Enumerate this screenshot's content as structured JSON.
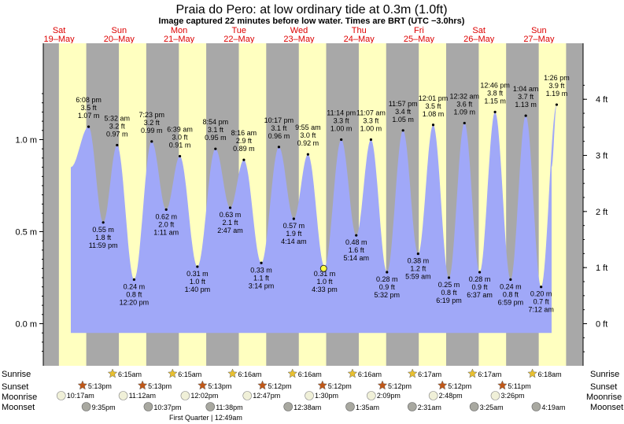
{
  "header": {
    "title": "Praia do Pero: at low  ordinary tide at 0.3m (1.0ft)",
    "subtitle": "Image captured 22 minutes before low water. Times are BRT (UTC −3.0hrs)"
  },
  "days": [
    {
      "dow": "Sat",
      "date": "19–May"
    },
    {
      "dow": "Sun",
      "date": "20–May"
    },
    {
      "dow": "Mon",
      "date": "21–May"
    },
    {
      "dow": "Tue",
      "date": "22–May"
    },
    {
      "dow": "Wed",
      "date": "23–May"
    },
    {
      "dow": "Thu",
      "date": "24–May"
    },
    {
      "dow": "Fri",
      "date": "25–May"
    },
    {
      "dow": "Sat",
      "date": "26–May"
    },
    {
      "dow": "Sun",
      "date": "27–May"
    }
  ],
  "colors": {
    "day": "#ffffc0",
    "night": "#a8a8a8",
    "tide": "#a0a8f8",
    "day_label": "#dd0000",
    "sun_star": "#e8c030",
    "sunset_star": "#c05818",
    "moon": "#f0f0d8",
    "moon_dark": "#a8a8a0"
  },
  "row_labels": {
    "sunrise": "Sunrise",
    "sunset": "Sunset",
    "moonrise": "Moonrise",
    "moonset": "Moonset"
  },
  "events": {
    "sunrise": [
      "6:15am",
      "6:15am",
      "6:16am",
      "6:16am",
      "6:16am",
      "6:17am",
      "6:17am",
      "6:18am"
    ],
    "sunset": [
      "5:13pm",
      "5:13pm",
      "5:13pm",
      "5:12pm",
      "5:12pm",
      "5:12pm",
      "5:12pm",
      "5:11pm"
    ],
    "moonrise": [
      "10:17am",
      "11:12am",
      "12:02pm",
      "12:47pm",
      "1:30pm",
      "2:09pm",
      "2:48pm",
      "3:26pm"
    ],
    "moonset": [
      "9:35pm",
      "10:37pm",
      "11:38pm",
      "12:38am",
      "1:35am",
      "2:31am",
      "3:25am",
      "4:19am"
    ],
    "phase_note": "First Quarter | 12:49am"
  },
  "chart_data": {
    "type": "area",
    "title": "Praia do Pero: at low  ordinary tide at 0.3m (1.0ft)",
    "y_left_ticks": [
      "0.0 m",
      "0.5 m",
      "1.0 m"
    ],
    "y_right_ticks": [
      "0 ft",
      "1 ft",
      "2 ft",
      "3 ft",
      "4 ft"
    ],
    "ylim_m": [
      -0.17,
      1.29
    ],
    "xlim": [
      "19-May 00:00",
      "27-May 24:00"
    ],
    "marker": {
      "time": "23-May 16:11",
      "height_m": 0.3
    },
    "tides": [
      {
        "type": "high",
        "time": "6:08 pm",
        "ft": "3.5 ft",
        "m": "1.07 m",
        "day": 0,
        "value": 1.07
      },
      {
        "type": "low",
        "time": "11:59 pm",
        "ft": "1.8 ft",
        "m": "0.55 m",
        "day": 0,
        "value": 0.55
      },
      {
        "type": "high",
        "time": "5:32 am",
        "ft": "3.2 ft",
        "m": "0.97 m",
        "day": 1,
        "value": 0.97
      },
      {
        "type": "low",
        "time": "12:20 pm",
        "ft": "0.8 ft",
        "m": "0.24 m",
        "day": 1,
        "value": 0.24
      },
      {
        "type": "high",
        "time": "7:23 pm",
        "ft": "3.2 ft",
        "m": "0.99 m",
        "day": 1,
        "value": 0.99
      },
      {
        "type": "low",
        "time": "1:11 am",
        "ft": "2.0 ft",
        "m": "0.62 m",
        "day": 2,
        "value": 0.62
      },
      {
        "type": "high",
        "time": "6:39 am",
        "ft": "3.0 ft",
        "m": "0.91 m",
        "day": 2,
        "value": 0.91
      },
      {
        "type": "low",
        "time": "1:40 pm",
        "ft": "1.0 ft",
        "m": "0.31 m",
        "day": 2,
        "value": 0.31
      },
      {
        "type": "high",
        "time": "8:54 pm",
        "ft": "3.1 ft",
        "m": "0.95 m",
        "day": 2,
        "value": 0.95
      },
      {
        "type": "low",
        "time": "2:47 am",
        "ft": "2.1 ft",
        "m": "0.63 m",
        "day": 3,
        "value": 0.63
      },
      {
        "type": "high",
        "time": "8:16 am",
        "ft": "2.9 ft",
        "m": "0.89 m",
        "day": 3,
        "value": 0.89
      },
      {
        "type": "low",
        "time": "3:14 pm",
        "ft": "1.1 ft",
        "m": "0.33 m",
        "day": 3,
        "value": 0.33
      },
      {
        "type": "high",
        "time": "10:17 pm",
        "ft": "3.1 ft",
        "m": "0.96 m",
        "day": 3,
        "value": 0.96
      },
      {
        "type": "low",
        "time": "4:14 am",
        "ft": "1.9 ft",
        "m": "0.57 m",
        "day": 4,
        "value": 0.57
      },
      {
        "type": "high",
        "time": "9:55 am",
        "ft": "3.0 ft",
        "m": "0.92 m",
        "day": 4,
        "value": 0.92
      },
      {
        "type": "low",
        "time": "4:33 pm",
        "ft": "1.0 ft",
        "m": "0.31 m",
        "day": 4,
        "value": 0.31
      },
      {
        "type": "high",
        "time": "11:14 pm",
        "ft": "3.3 ft",
        "m": "1.00 m",
        "day": 4,
        "value": 1.0
      },
      {
        "type": "low",
        "time": "5:14 am",
        "ft": "1.6 ft",
        "m": "0.48 m",
        "day": 5,
        "value": 0.48
      },
      {
        "type": "high",
        "time": "11:07 am",
        "ft": "3.3 ft",
        "m": "1.00 m",
        "day": 5,
        "value": 1.0
      },
      {
        "type": "low",
        "time": "5:32 pm",
        "ft": "0.9 ft",
        "m": "0.28 m",
        "day": 5,
        "value": 0.28
      },
      {
        "type": "high",
        "time": "11:57 pm",
        "ft": "3.4 ft",
        "m": "1.05 m",
        "day": 5,
        "value": 1.05
      },
      {
        "type": "low",
        "time": "5:59 am",
        "ft": "1.2 ft",
        "m": "0.38 m",
        "day": 6,
        "value": 0.38
      },
      {
        "type": "high",
        "time": "12:01 pm",
        "ft": "3.5 ft",
        "m": "1.08 m",
        "day": 6,
        "value": 1.08
      },
      {
        "type": "low",
        "time": "6:19 pm",
        "ft": "0.8 ft",
        "m": "0.25 m",
        "day": 6,
        "value": 0.25
      },
      {
        "type": "high",
        "time": "12:32 am",
        "ft": "3.6 ft",
        "m": "1.09 m",
        "day": 7,
        "value": 1.09
      },
      {
        "type": "low",
        "time": "6:37 am",
        "ft": "0.9 ft",
        "m": "0.28 m",
        "day": 7,
        "value": 0.28
      },
      {
        "type": "high",
        "time": "12:46 pm",
        "ft": "3.8 ft",
        "m": "1.15 m",
        "day": 7,
        "value": 1.15
      },
      {
        "type": "low",
        "time": "6:59 pm",
        "ft": "0.8 ft",
        "m": "0.24 m",
        "day": 7,
        "value": 0.24
      },
      {
        "type": "high",
        "time": "1:04 am",
        "ft": "3.7 ft",
        "m": "1.13 m",
        "day": 8,
        "value": 1.13
      },
      {
        "type": "low",
        "time": "7:12 am",
        "ft": "0.7 ft",
        "m": "0.20 m",
        "day": 8,
        "value": 0.2
      },
      {
        "type": "high",
        "time": "1:26 pm",
        "ft": "3.9 ft",
        "m": "1.19 m",
        "day": 8,
        "value": 1.19
      }
    ]
  }
}
